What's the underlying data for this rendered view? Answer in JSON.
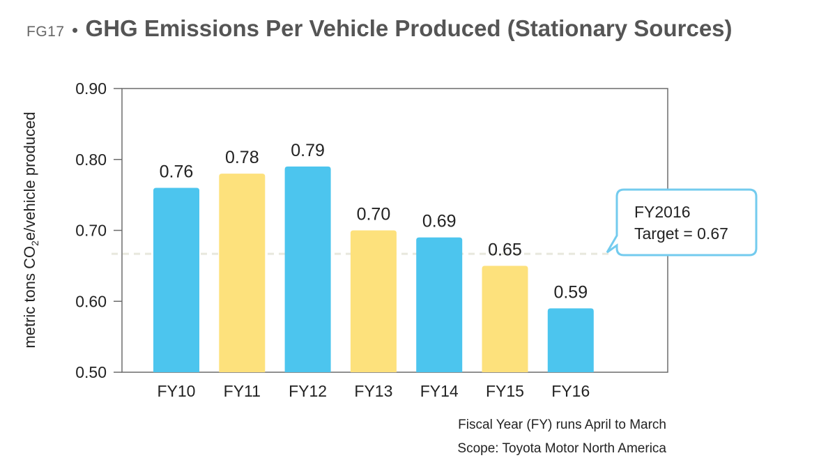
{
  "title": {
    "code": "FG17",
    "bullet": "•",
    "main": "GHG Emissions Per Vehicle Produced (Stationary Sources)"
  },
  "ylabel_parts": {
    "before": "metric tons CO",
    "sub": "2",
    "after": "e/vehicle produced"
  },
  "chart_data": {
    "type": "bar",
    "title": "GHG Emissions Per Vehicle Produced (Stationary Sources)",
    "ylabel": "metric tons CO2e/vehicle produced",
    "xlabel": "",
    "categories": [
      "FY10",
      "FY11",
      "FY12",
      "FY13",
      "FY14",
      "FY15",
      "FY16"
    ],
    "values": [
      0.76,
      0.78,
      0.79,
      0.7,
      0.69,
      0.65,
      0.59
    ],
    "value_labels": [
      "0.76",
      "0.78",
      "0.79",
      "0.70",
      "0.69",
      "0.65",
      "0.59"
    ],
    "bar_colors": [
      "#4cc5ee",
      "#fde17c",
      "#4cc5ee",
      "#fde17c",
      "#4cc5ee",
      "#fde17c",
      "#4cc5ee"
    ],
    "ylim": [
      0.5,
      0.9
    ],
    "yticks": [
      "0.90",
      "0.80",
      "0.70",
      "0.60",
      "0.50"
    ],
    "ytick_values": [
      0.9,
      0.8,
      0.7,
      0.6,
      0.5
    ],
    "target": {
      "value": 0.667,
      "line_color": "#e8e8dd",
      "label_line1": "FY2016",
      "label_line2": "Target = 0.67",
      "callout_border": "#73cbee"
    },
    "grid": false
  },
  "notes": {
    "fiscal_year": "Fiscal Year (FY) runs April to March",
    "scope": "Scope: Toyota Motor North America"
  }
}
